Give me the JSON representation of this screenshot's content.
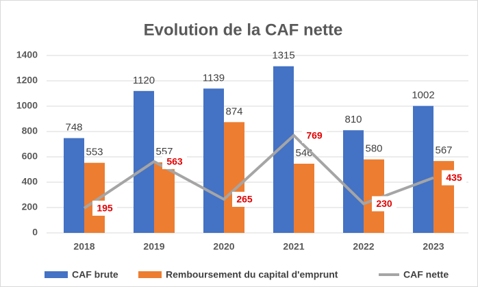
{
  "chart_data": {
    "type": "bar",
    "title": "Evolution de la CAF nette",
    "categories": [
      "2018",
      "2019",
      "2020",
      "2021",
      "2022",
      "2023"
    ],
    "series": [
      {
        "name": "CAF brute",
        "type": "bar",
        "color": "#4472c4",
        "values": [
          748,
          1120,
          1139,
          1315,
          810,
          1002
        ]
      },
      {
        "name": "Remboursement du capital d'emprunt",
        "type": "bar",
        "color": "#ed7d31",
        "values": [
          553,
          557,
          874,
          546,
          580,
          567
        ]
      },
      {
        "name": "CAF nette",
        "type": "line",
        "color": "#a5a5a5",
        "values": [
          195,
          563,
          265,
          769,
          230,
          435
        ]
      }
    ],
    "ylim": [
      0,
      1400
    ],
    "yticks": [
      0,
      200,
      400,
      600,
      800,
      1000,
      1200,
      1400
    ],
    "grid": true,
    "legend": "bottom"
  }
}
